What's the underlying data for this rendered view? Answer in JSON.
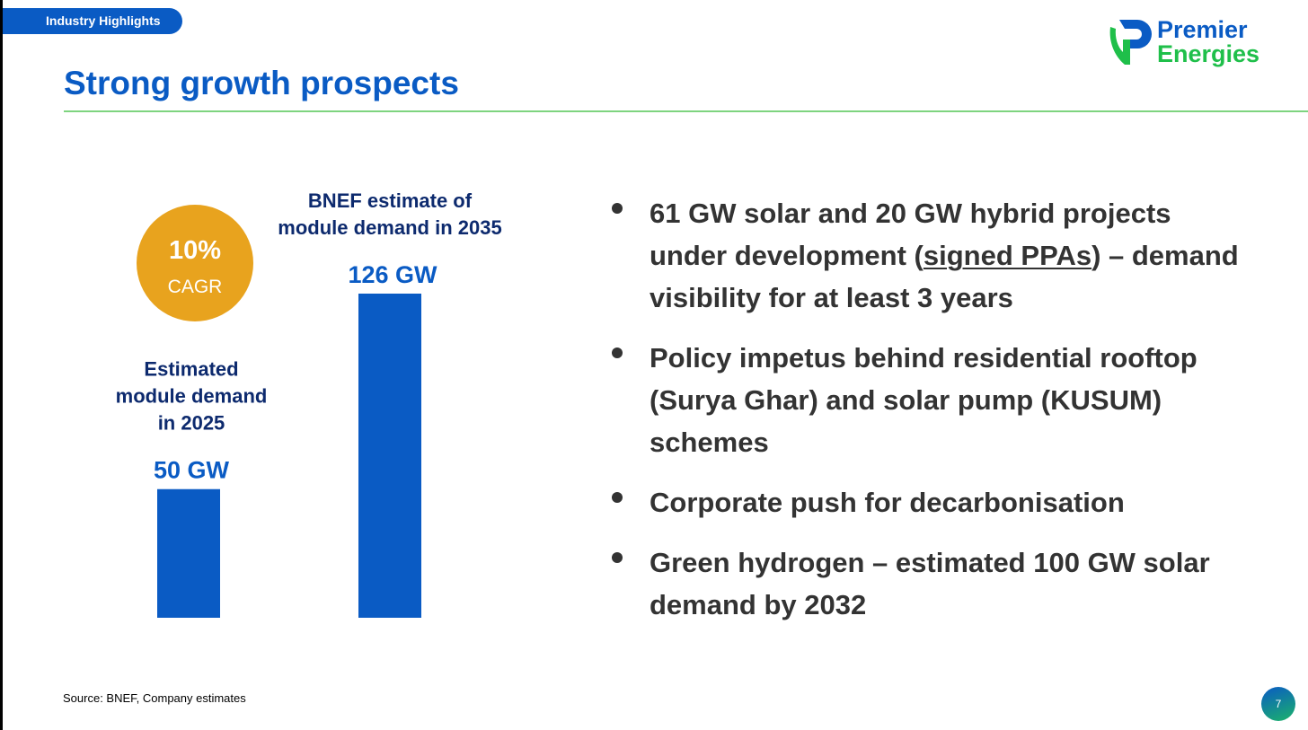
{
  "header": {
    "section_label": "Industry Highlights",
    "title": "Strong growth prospects",
    "logo": {
      "line1": "Premier",
      "line2": "Energies",
      "icon": "premier-energies-logo-mark"
    }
  },
  "colors": {
    "primary_blue": "#0a5bc4",
    "green": "#1fbf4a",
    "cagr_badge": "#e8a31e",
    "rule": "#7ed47f"
  },
  "chart_data": {
    "type": "bar",
    "categories": [
      "Estimated module demand in 2025",
      "BNEF estimate of module demand in 2035"
    ],
    "category_lines": [
      [
        "Estimated",
        "module demand",
        "in 2025"
      ],
      [
        "BNEF estimate of",
        "module demand in 2035"
      ]
    ],
    "values": [
      50,
      126
    ],
    "value_labels": [
      "50 GW",
      "126 GW"
    ],
    "unit": "GW",
    "annotation": {
      "value": "10%",
      "label": "CAGR"
    },
    "grid": false
  },
  "bullets": [
    {
      "parts": [
        {
          "text": "61 GW solar and 20 GW hybrid projects under development ("
        },
        {
          "text": "signed PPAs",
          "underline": true
        },
        {
          "text": ") – demand visibility for at least 3 years"
        }
      ]
    },
    {
      "parts": [
        {
          "text": "Policy impetus behind residential rooftop (Surya Ghar) and solar pump (KUSUM) schemes"
        }
      ]
    },
    {
      "parts": [
        {
          "text": "Corporate push for decarbonisation"
        }
      ]
    },
    {
      "parts": [
        {
          "text": "Green hydrogen – estimated 100 GW solar demand by 2032"
        }
      ]
    }
  ],
  "footer": {
    "source": "Source: BNEF, Company estimates",
    "page_number": "7"
  }
}
